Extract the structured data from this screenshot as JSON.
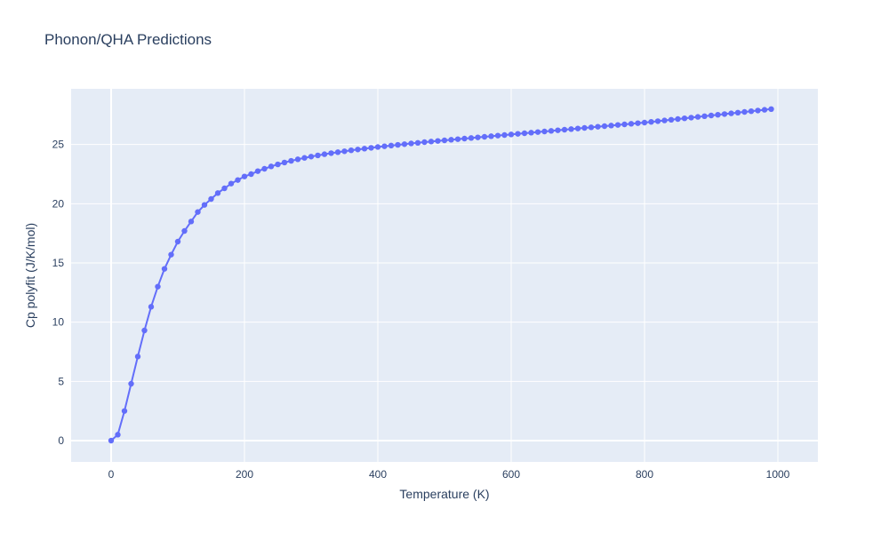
{
  "chart_data": {
    "type": "line",
    "title": "Phonon/QHA Predictions",
    "xlabel": "Temperature (K)",
    "ylabel": "Cp polyfit (J/K/mol)",
    "xlim": [
      -60,
      1060
    ],
    "ylim": [
      -1.8,
      29.7
    ],
    "x_ticks": [
      0,
      200,
      400,
      600,
      800,
      1000
    ],
    "y_ticks": [
      0,
      5,
      10,
      15,
      20,
      25
    ],
    "grid": true,
    "legend": "none",
    "colors": {
      "series": "#636efa",
      "plot_bg": "#e5ecf6",
      "grid": "#ffffff",
      "text": "#2a3f5f"
    },
    "series": [
      {
        "marker": "circle",
        "x": [
          0,
          10,
          20,
          30,
          40,
          50,
          60,
          70,
          80,
          90,
          100,
          110,
          120,
          130,
          140,
          150,
          160,
          170,
          180,
          190,
          200,
          210,
          220,
          230,
          240,
          250,
          260,
          270,
          280,
          290,
          300,
          310,
          320,
          330,
          340,
          350,
          360,
          370,
          380,
          390,
          400,
          410,
          420,
          430,
          440,
          450,
          460,
          470,
          480,
          490,
          500,
          510,
          520,
          530,
          540,
          550,
          560,
          570,
          580,
          590,
          600,
          610,
          620,
          630,
          640,
          650,
          660,
          670,
          680,
          690,
          700,
          710,
          720,
          730,
          740,
          750,
          760,
          770,
          780,
          790,
          800,
          810,
          820,
          830,
          840,
          850,
          860,
          870,
          880,
          890,
          900,
          910,
          920,
          930,
          940,
          950,
          960,
          970,
          980,
          990
        ],
        "y": [
          0.0,
          0.5,
          2.5,
          4.8,
          7.1,
          9.3,
          11.3,
          13.0,
          14.5,
          15.7,
          16.8,
          17.7,
          18.5,
          19.3,
          19.9,
          20.4,
          20.9,
          21.3,
          21.7,
          22.0,
          22.3,
          22.5,
          22.75,
          22.95,
          23.15,
          23.32,
          23.48,
          23.62,
          23.75,
          23.87,
          23.98,
          24.08,
          24.18,
          24.27,
          24.35,
          24.43,
          24.51,
          24.58,
          24.65,
          24.72,
          24.79,
          24.85,
          24.91,
          24.97,
          25.03,
          25.09,
          25.14,
          25.2,
          25.25,
          25.3,
          25.35,
          25.4,
          25.45,
          25.5,
          25.55,
          25.6,
          25.65,
          25.7,
          25.75,
          25.8,
          25.85,
          25.9,
          25.95,
          26.0,
          26.05,
          26.1,
          26.15,
          26.2,
          26.25,
          26.3,
          26.35,
          26.4,
          26.45,
          26.5,
          26.55,
          26.6,
          26.65,
          26.7,
          26.75,
          26.8,
          26.85,
          26.91,
          26.97,
          27.03,
          27.09,
          27.15,
          27.21,
          27.27,
          27.33,
          27.39,
          27.45,
          27.51,
          27.57,
          27.63,
          27.69,
          27.75,
          27.81,
          27.87,
          27.93,
          27.99
        ]
      }
    ]
  }
}
